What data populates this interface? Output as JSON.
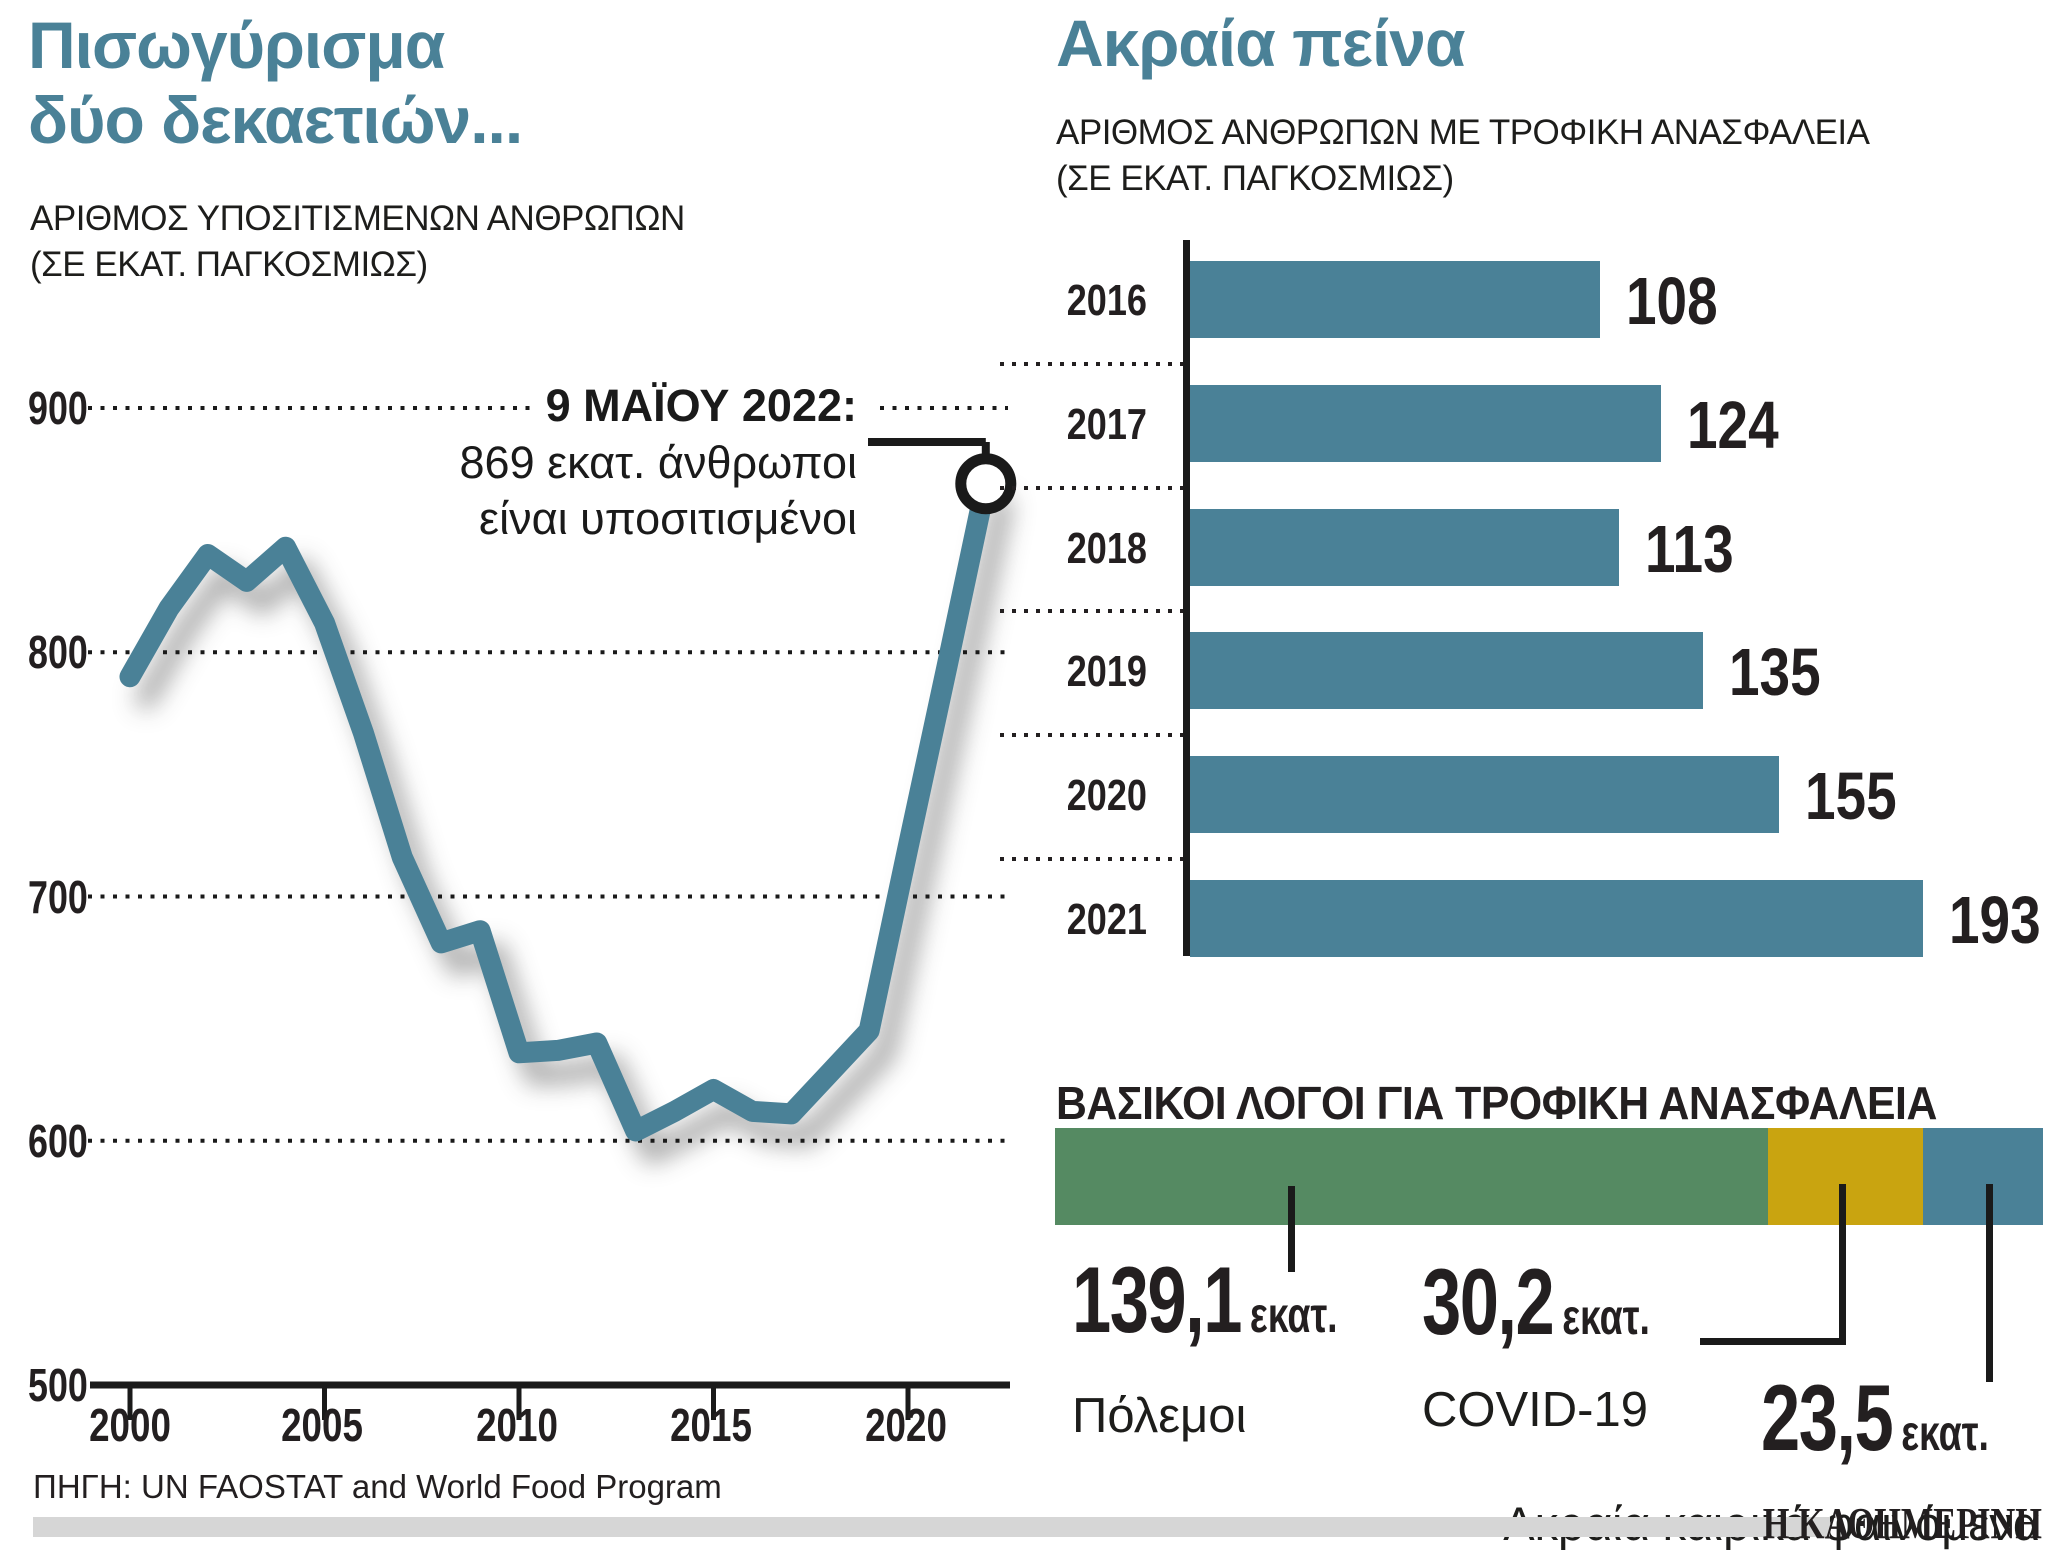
{
  "left_chart": {
    "title": "Πισωγύρισμα\nδύο δεκαετιών...",
    "subtitle": "ΑΡΙΘΜΟΣ ΥΠΟΣΙΤΙΣΜΕΝΩΝ ΑΝΘΡΩΠΩΝ\n(ΣΕ ΕΚΑΤ. ΠΑΓΚΟΣΜΙΩΣ)",
    "annotation": {
      "title": "9 ΜΑΪΟΥ 2022:",
      "line1": "869 εκατ. άνθρωποι",
      "line2": "είναι υποσιτισμένοι"
    }
  },
  "right_chart": {
    "title": "Ακραία πείνα",
    "subtitle": "ΑΡΙΘΜΟΣ ΑΝΘΡΩΠΩΝ ΜΕ ΤΡΟΦΙΚΗ ΑΝΑΣΦΑΛΕΙΑ\n(ΣΕ ΕΚΑΤ. ΠΑΓΚΟΣΜΙΩΣ)"
  },
  "reasons": {
    "heading": "ΒΑΣΙΚΟΙ ΛΟΓΟΙ ΓΙΑ ΤΡΟΦΙΚΗ ΑΝΑΣΦΑΛΕΙΑ",
    "items": [
      {
        "value_label": "139,1",
        "unit": "εκατ.",
        "name": "Πόλεμοι",
        "value": 139.1,
        "color": "#558a62"
      },
      {
        "value_label": "30,2",
        "unit": "εκατ.",
        "name": "COVID-19",
        "value": 30.2,
        "color": "#c9a410"
      },
      {
        "value_label": "23,5",
        "unit": "εκατ.",
        "name": "Ακραία καιρικά φαινόμενα",
        "value": 23.5,
        "color": "#4a8197"
      }
    ]
  },
  "footer": {
    "source": "ΠΗΓΗ: UN FAOSTAT and World Food Program",
    "logo": "Η ΚΑΘΗΜΕΡΙΝΗ"
  },
  "colors": {
    "teal": "#4a8197",
    "green": "#558a62",
    "gold": "#c9a410",
    "ink": "#1a1a1a",
    "gray_bar": "#d6d6d6"
  },
  "chart_data": [
    {
      "type": "line",
      "title": "Πισωγύρισμα δύο δεκαετιών...",
      "subtitle": "ΑΡΙΘΜΟΣ ΥΠΟΣΙΤΙΣΜΕΝΩΝ ΑΝΘΡΩΠΩΝ (ΣΕ ΕΚΑΤ. ΠΑΓΚΟΣΜΙΩΣ)",
      "x": [
        2000,
        2001,
        2002,
        2003,
        2004,
        2005,
        2006,
        2007,
        2008,
        2009,
        2010,
        2011,
        2012,
        2013,
        2014,
        2015,
        2016,
        2017,
        2018,
        2019,
        2020,
        2021,
        2022
      ],
      "values": [
        790,
        818,
        840,
        829,
        843,
        812,
        767,
        716,
        681,
        686,
        636,
        637,
        640,
        604,
        612,
        621,
        612,
        611,
        628,
        645,
        720,
        794,
        869
      ],
      "ylim": [
        500,
        900
      ],
      "yticks": [
        900,
        800,
        700,
        600,
        500
      ],
      "xticks": [
        2000,
        2005,
        2010,
        2015,
        2020
      ],
      "grid": "dotted-horizontal",
      "line_color": "#4a8197",
      "annotation": {
        "x": 2022,
        "y": 869,
        "text": "9 ΜΑΪΟΥ 2022: 869 εκατ. άνθρωποι είναι υποσιτισμένοι"
      }
    },
    {
      "type": "bar",
      "orientation": "horizontal",
      "title": "Ακραία πείνα",
      "subtitle": "ΑΡΙΘΜΟΣ ΑΝΘΡΩΠΩΝ ΜΕ ΤΡΟΦΙΚΗ ΑΝΑΣΦΑΛΕΙΑ (ΣΕ ΕΚΑΤ. ΠΑΓΚΟΣΜΙΩΣ)",
      "categories": [
        "2016",
        "2017",
        "2018",
        "2019",
        "2020",
        "2021"
      ],
      "values": [
        108,
        124,
        113,
        135,
        155,
        193
      ],
      "bar_color": "#4a8197",
      "xlim": [
        0,
        210
      ]
    },
    {
      "type": "bar",
      "subtype": "stacked-single",
      "title": "ΒΑΣΙΚΟΙ ΛΟΓΟΙ ΓΙΑ ΤΡΟΦΙΚΗ ΑΝΑΣΦΑΛΕΙΑ",
      "segments": [
        {
          "label": "Πόλεμοι",
          "value": 139.1,
          "color": "#558a62"
        },
        {
          "label": "COVID-19",
          "value": 30.2,
          "color": "#c9a410"
        },
        {
          "label": "Ακραία καιρικά φαινόμενα",
          "value": 23.5,
          "color": "#4a8197"
        }
      ],
      "unit": "εκατ."
    }
  ]
}
